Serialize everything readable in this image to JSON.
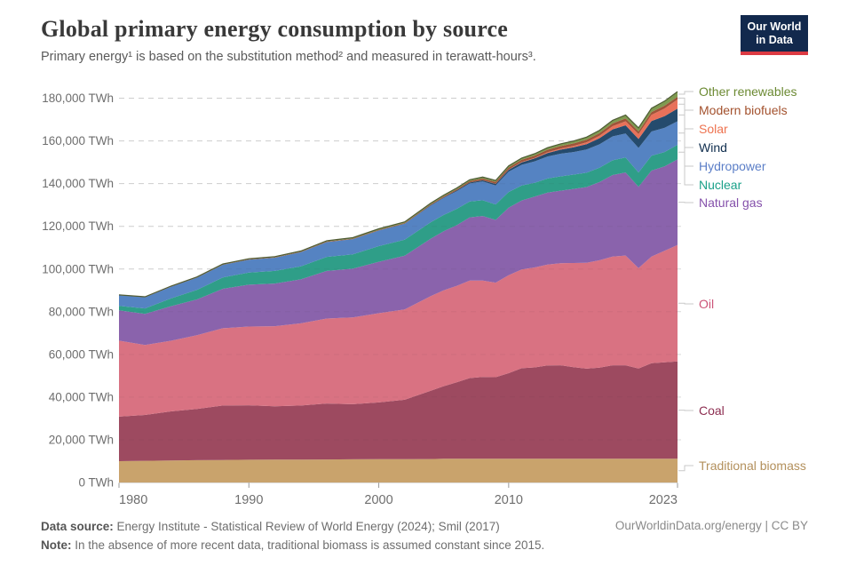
{
  "header": {
    "title": "Global primary energy consumption by source",
    "subtitle": "Primary energy¹ is based on the substitution method² and measured in terawatt-hours³.",
    "logo": {
      "line1": "Our World",
      "line2": "in Data",
      "bg": "#12294d",
      "accent": "#dc3a43"
    }
  },
  "footer": {
    "source_label": "Data source:",
    "source_text": " Energy Institute - Statistical Review of World Energy (2024); Smil (2017)",
    "note_label": "Note:",
    "note_text": " In the absence of more recent data, traditional biomass is assumed constant since 2015.",
    "attribution": "OurWorldinData.org/energy | CC BY"
  },
  "chart_data": {
    "type": "area",
    "stacked": true,
    "title": "Global primary energy consumption by source",
    "unit": "TWh",
    "grid": "dashed-horizontal",
    "legend_position": "right",
    "ylim": [
      0,
      190000
    ],
    "xlim": [
      1980,
      2023
    ],
    "y_ticks": [
      {
        "v": 0,
        "label": "0 TWh"
      },
      {
        "v": 20000,
        "label": "20,000 TWh"
      },
      {
        "v": 40000,
        "label": "40,000 TWh"
      },
      {
        "v": 60000,
        "label": "60,000 TWh"
      },
      {
        "v": 80000,
        "label": "80,000 TWh"
      },
      {
        "v": 100000,
        "label": "100,000 TWh"
      },
      {
        "v": 120000,
        "label": "120,000 TWh"
      },
      {
        "v": 140000,
        "label": "140,000 TWh"
      },
      {
        "v": 160000,
        "label": "160,000 TWh"
      },
      {
        "v": 180000,
        "label": "180,000 TWh"
      }
    ],
    "x_ticks": [
      {
        "year": 1980,
        "label": "1980"
      },
      {
        "year": 1990,
        "label": "1990"
      },
      {
        "year": 2000,
        "label": "2000"
      },
      {
        "year": 2010,
        "label": "2010"
      },
      {
        "year": 2023,
        "label": "2023"
      }
    ],
    "x": [
      1980,
      1982,
      1984,
      1986,
      1988,
      1990,
      1992,
      1994,
      1996,
      1998,
      2000,
      2002,
      2004,
      2005,
      2006,
      2007,
      2008,
      2009,
      2010,
      2011,
      2012,
      2013,
      2014,
      2015,
      2016,
      2017,
      2018,
      2019,
      2020,
      2021,
      2022,
      2023
    ],
    "series": [
      {
        "name": "traditional-biomass",
        "label": "Traditional biomass",
        "color": "#c9a36c",
        "label_color": "#b3905c",
        "values": [
          10000,
          10150,
          10300,
          10450,
          10550,
          10650,
          10700,
          10750,
          10800,
          10850,
          10900,
          10950,
          11000,
          11110,
          11110,
          11110,
          11110,
          11110,
          11110,
          11110,
          11110,
          11110,
          11110,
          11110,
          11110,
          11110,
          11110,
          11110,
          11110,
          11110,
          11110,
          11110
        ]
      },
      {
        "name": "coal",
        "label": "Coal",
        "color": "#9d4a60",
        "label_color": "#8d2e51",
        "values": [
          20858,
          21500,
          23000,
          24000,
          25500,
          25500,
          25000,
          25300,
          26200,
          25800,
          26600,
          27800,
          32000,
          34000,
          35800,
          37800,
          38300,
          38200,
          40100,
          42400,
          42800,
          43700,
          43800,
          42900,
          42200,
          42700,
          43800,
          43800,
          42300,
          44800,
          45200,
          45565
        ]
      },
      {
        "name": "oil",
        "label": "Oil",
        "color": "#d97282",
        "label_color": "#cc5478",
        "values": [
          35577,
          32800,
          33100,
          34500,
          36200,
          36900,
          37500,
          38500,
          39800,
          40700,
          41800,
          42300,
          44300,
          44900,
          45200,
          45700,
          45200,
          44300,
          45900,
          46300,
          46800,
          47300,
          47800,
          48800,
          49600,
          50300,
          50900,
          51400,
          47000,
          49900,
          52200,
          54564
        ]
      },
      {
        "name": "natural-gas",
        "label": "Natural gas",
        "color": "#8a63ac",
        "label_color": "#8551ab",
        "values": [
          14243,
          14500,
          16200,
          16800,
          18500,
          19600,
          20000,
          20600,
          22300,
          22800,
          24100,
          25200,
          26900,
          27700,
          28400,
          29600,
          30200,
          29400,
          31600,
          32300,
          33200,
          33700,
          34000,
          34700,
          35500,
          36600,
          38200,
          38900,
          38100,
          40300,
          39600,
          40102
        ]
      },
      {
        "name": "nuclear",
        "label": "Nuclear",
        "color": "#2f9e88",
        "label_color": "#1aa189",
        "values": [
          2020,
          2600,
          3600,
          4500,
          5300,
          5676,
          5900,
          6100,
          6600,
          6700,
          7300,
          7500,
          7700,
          7600,
          7650,
          7450,
          7380,
          7230,
          7374,
          7000,
          6500,
          6600,
          6700,
          6700,
          6700,
          6700,
          6900,
          7000,
          6700,
          7000,
          6700,
          6824
        ]
      },
      {
        "name": "hydropower",
        "label": "Hydropower",
        "color": "#5583c2",
        "label_color": "#5b7ec7",
        "values": [
          4971,
          5200,
          5500,
          5700,
          5900,
          6020,
          6200,
          6600,
          6900,
          7100,
          7300,
          7400,
          7800,
          8000,
          8300,
          8400,
          8800,
          8900,
          9500,
          9700,
          10000,
          10300,
          10600,
          10600,
          10900,
          11000,
          11200,
          11300,
          11500,
          11300,
          11300,
          11014
        ]
      },
      {
        "name": "wind",
        "label": "Wind",
        "color": "#254b6d",
        "label_color": "#102e4e",
        "values": [
          0,
          0,
          2,
          5,
          8,
          10,
          13,
          20,
          30,
          50,
          90,
          140,
          230,
          280,
          350,
          450,
          580,
          700,
          900,
          1150,
          1400,
          1650,
          1900,
          2200,
          2500,
          2900,
          3300,
          3800,
          4200,
          4900,
          5500,
          5940
        ]
      },
      {
        "name": "solar",
        "label": "Solar",
        "color": "#e8715a",
        "label_color": "#ee7350",
        "values": [
          0,
          0,
          0,
          0,
          1,
          1,
          2,
          2,
          2,
          2,
          3,
          5,
          10,
          12,
          15,
          20,
          35,
          55,
          90,
          170,
          260,
          380,
          500,
          670,
          870,
          1150,
          1500,
          1900,
          2300,
          2900,
          3600,
          4264
        ]
      },
      {
        "name": "modern-biofuels",
        "label": "Modern biofuels",
        "color": "#9e5439",
        "label_color": "#a3512d",
        "values": [
          110,
          130,
          150,
          160,
          170,
          185,
          200,
          220,
          240,
          255,
          270,
          300,
          380,
          450,
          540,
          660,
          800,
          870,
          1000,
          1030,
          1060,
          1130,
          1170,
          1140,
          1180,
          1210,
          1280,
          1330,
          1230,
          1300,
          1330,
          1319
        ]
      },
      {
        "name": "other-renewables",
        "label": "Other renewables",
        "color": "#7f9a50",
        "label_color": "#6c8a33",
        "values": [
          95,
          110,
          140,
          170,
          210,
          250,
          290,
          330,
          380,
          420,
          460,
          490,
          530,
          550,
          580,
          620,
          660,
          700,
          745,
          800,
          870,
          950,
          1030,
          1120,
          1220,
          1340,
          1450,
          1560,
          1680,
          1800,
          2100,
          2405
        ]
      }
    ]
  }
}
